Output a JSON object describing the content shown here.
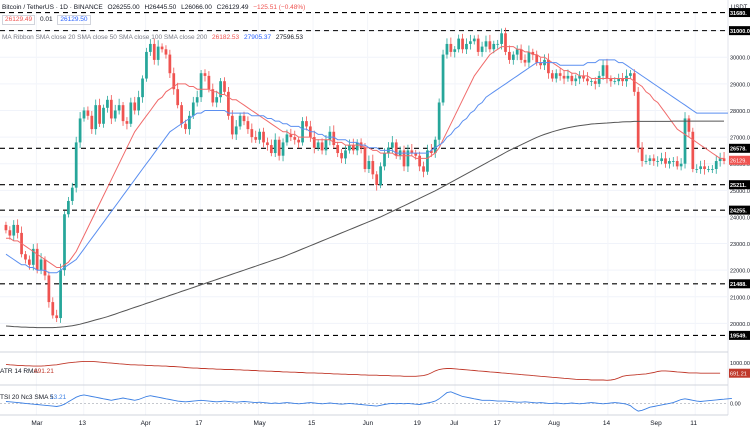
{
  "header": {
    "pair": "Bitcoin / TetherUS · 1D · BINANCE",
    "o": "O26255.00",
    "h": "H26445.50",
    "l": "L26066.00",
    "c": "C26129.49",
    "chg": "−125.51 (−0.48%)",
    "sell": "26129.49",
    "spread": "0.01",
    "buy": "26129.50",
    "ma_ribbon_label": "MA Ribbon SMA close 20 SMA close 50 SMA close 100 SMA close 200",
    "ma20": "26182.53",
    "ma50": "27905.37",
    "ma200": "27596.53",
    "currency": "USDT"
  },
  "colors": {
    "up": "#26a69a",
    "down": "#ef5350",
    "ma20": "#f06b6b",
    "ma50": "#5b8ff0",
    "ma200": "#555555",
    "atr": "#c0392b",
    "tsi": "#3b7fe3"
  },
  "chart_data": {
    "type": "candlestick",
    "title": "Bitcoin / TetherUS · 1D · BINANCE",
    "xlabel": "",
    "ylabel": "",
    "ylim": [
      19000,
      31700
    ],
    "x_ticks": [
      "Mar",
      "13",
      "Apr",
      "17",
      "May",
      "15",
      "Jun",
      "19",
      "Jul",
      "17",
      "Aug",
      "14",
      "Sep",
      "11"
    ],
    "y_ticks": [
      "31000.00",
      "30000.00",
      "29000.00",
      "28000.00",
      "27000.00",
      "26000.00",
      "25000.00",
      "24000.00",
      "23000.00",
      "22000.00",
      "21000.00",
      "20000.00"
    ],
    "price_levels": [
      {
        "label": "31680.",
        "value": 31680
      },
      {
        "label": "31000.00",
        "value": 31000
      },
      {
        "label": "26578.",
        "value": 26578
      },
      {
        "label": "25211.",
        "value": 25211
      },
      {
        "label": "24255.",
        "value": 24255
      },
      {
        "label": "21488.",
        "value": 21488
      },
      {
        "label": "19549.",
        "value": 19549
      }
    ],
    "last_price_label": "26129.",
    "last_price_value": 26129,
    "close_series": [
      23500,
      23300,
      23700,
      23400,
      22600,
      22400,
      22200,
      22800,
      22000,
      22400,
      21800,
      20800,
      20300,
      20200,
      22000,
      24100,
      24600,
      25100,
      26800,
      27700,
      28000,
      27800,
      27300,
      28200,
      27500,
      28100,
      28400,
      27700,
      28000,
      28200,
      27600,
      27500,
      28300,
      28000,
      28500,
      29200,
      30200,
      30500,
      29900,
      30400,
      30300,
      30100,
      29400,
      28800,
      28200,
      27500,
      27300,
      27800,
      28300,
      28500,
      29400,
      29300,
      28800,
      28300,
      28500,
      29100,
      28700,
      27800,
      27100,
      27400,
      27800,
      27600,
      27300,
      27000,
      26900,
      27200,
      26800,
      26700,
      26400,
      26900,
      26300,
      26800,
      27100,
      27000,
      26900,
      26800,
      27600,
      27400,
      27000,
      26600,
      26800,
      26500,
      26900,
      27200,
      26700,
      26400,
      26200,
      26500,
      26700,
      26500,
      26800,
      26600,
      25800,
      26100,
      25600,
      25200,
      25900,
      26400,
      26600,
      26800,
      26300,
      26500,
      25900,
      26500,
      26400,
      26300,
      25900,
      25700,
      26500,
      26400,
      26900,
      28300,
      30100,
      30500,
      30200,
      30300,
      30700,
      30300,
      30500,
      30600,
      30700,
      30200,
      30400,
      30600,
      30300,
      30500,
      30500,
      30900,
      30200,
      29900,
      30100,
      30300,
      29900,
      29800,
      30200,
      30100,
      29800,
      29700,
      29900,
      29400,
      29200,
      29400,
      29300,
      29200,
      29300,
      29100,
      29200,
      29300,
      29200,
      29100,
      29100,
      29000,
      29300,
      29700,
      29200,
      29100,
      29100,
      29200,
      29100,
      29300,
      29400,
      28700,
      26600,
      26100,
      26100,
      26200,
      26100,
      26100,
      26200,
      26000,
      26100,
      26100,
      25900,
      26000,
      27700,
      27200,
      25800,
      25800,
      25900,
      25800,
      25800,
      25800,
      26100,
      26200,
      26100
    ],
    "series": [
      {
        "name": "SMA close 20",
        "value_label": "26182.53",
        "values": [
          23200,
          23200,
          23100,
          23100,
          23000,
          22900,
          22800,
          22700,
          22600,
          22500,
          22400,
          22300,
          22200,
          22100,
          22100,
          22200,
          22300,
          22500,
          22700,
          23000,
          23300,
          23600,
          23900,
          24200,
          24500,
          24800,
          25100,
          25400,
          25700,
          26000,
          26300,
          26600,
          26900,
          27200,
          27400,
          27600,
          27800,
          28000,
          28200,
          28400,
          28500,
          28700,
          28800,
          28900,
          29000,
          29000,
          29000,
          28900,
          28900,
          28800,
          28800,
          28800,
          28800,
          28700,
          28700,
          28600,
          28600,
          28500,
          28400,
          28400,
          28300,
          28200,
          28100,
          28000,
          27900,
          27800,
          27700,
          27600,
          27500,
          27400,
          27300,
          27200,
          27200,
          27100,
          27100,
          27000,
          27000,
          27000,
          27000,
          26900,
          26900,
          26900,
          26900,
          26900,
          26800,
          26800,
          26800,
          26700,
          26700,
          26700,
          26700,
          26700,
          26600,
          26600,
          26500,
          26500,
          26400,
          26400,
          26400,
          26400,
          26300,
          26300,
          26300,
          26300,
          26300,
          26200,
          26200,
          26200,
          26200,
          26300,
          26400,
          26600,
          26900,
          27200,
          27500,
          27800,
          28100,
          28400,
          28700,
          29000,
          29300,
          29500,
          29700,
          29900,
          30100,
          30200,
          30300,
          30400,
          30400,
          30400,
          30400,
          30300,
          30300,
          30200,
          30200,
          30100,
          30100,
          30000,
          30000,
          29900,
          29800,
          29700,
          29600,
          29500,
          29500,
          29400,
          29400,
          29300,
          29300,
          29300,
          29200,
          29200,
          29200,
          29200,
          29200,
          29200,
          29200,
          29200,
          29200,
          29200,
          29200,
          29100,
          29000,
          28900,
          28700,
          28600,
          28400,
          28300,
          28100,
          27900,
          27700,
          27500,
          27300,
          27200,
          27100,
          27000,
          26900,
          26800,
          26700,
          26600,
          26500,
          26400,
          26300,
          26200,
          26200
        ]
      },
      {
        "name": "SMA close 50",
        "value_label": "27905.37",
        "values": [
          22600,
          22500,
          22400,
          22300,
          22200,
          22200,
          22100,
          22100,
          22000,
          22000,
          22000,
          21900,
          21900,
          21900,
          22000,
          22100,
          22200,
          22300,
          22400,
          22600,
          22800,
          23000,
          23200,
          23400,
          23600,
          23800,
          24000,
          24200,
          24400,
          24600,
          24800,
          25000,
          25200,
          25400,
          25600,
          25800,
          26000,
          26200,
          26400,
          26600,
          26800,
          27000,
          27200,
          27300,
          27400,
          27500,
          27600,
          27700,
          27800,
          27900,
          27900,
          28000,
          28000,
          28000,
          28000,
          28000,
          28000,
          27900,
          27900,
          27900,
          27900,
          27900,
          27900,
          27800,
          27800,
          27800,
          27800,
          27700,
          27700,
          27600,
          27600,
          27500,
          27500,
          27400,
          27400,
          27400,
          27300,
          27300,
          27200,
          27200,
          27100,
          27100,
          27000,
          27000,
          27000,
          26900,
          26900,
          26900,
          26800,
          26800,
          26800,
          26700,
          26700,
          26600,
          26600,
          26600,
          26500,
          26500,
          26500,
          26500,
          26400,
          26400,
          26400,
          26400,
          26400,
          26400,
          26400,
          26400,
          26400,
          26500,
          26600,
          26700,
          26800,
          27000,
          27100,
          27300,
          27400,
          27600,
          27700,
          27900,
          28000,
          28200,
          28300,
          28500,
          28600,
          28700,
          28800,
          28900,
          29000,
          29100,
          29200,
          29300,
          29400,
          29500,
          29600,
          29700,
          29800,
          29800,
          29800,
          29800,
          29800,
          29800,
          29700,
          29700,
          29700,
          29700,
          29700,
          29700,
          29700,
          29800,
          29800,
          29800,
          29900,
          29900,
          29900,
          29900,
          29900,
          29800,
          29800,
          29700,
          29600,
          29500,
          29400,
          29300,
          29200,
          29100,
          29000,
          28900,
          28800,
          28700,
          28600,
          28500,
          28400,
          28300,
          28200,
          28100,
          28000,
          27900,
          27900,
          27900,
          27900,
          27900,
          27900,
          27900,
          27900,
          27900
        ]
      },
      {
        "name": "SMA close 200",
        "value_label": "27596.53",
        "values": [
          19900,
          19890,
          19880,
          19870,
          19860,
          19860,
          19850,
          19850,
          19840,
          19840,
          19840,
          19840,
          19840,
          19850,
          19860,
          19870,
          19890,
          19910,
          19940,
          19970,
          20010,
          20050,
          20090,
          20130,
          20170,
          20210,
          20250,
          20300,
          20350,
          20400,
          20450,
          20500,
          20550,
          20600,
          20650,
          20700,
          20750,
          20800,
          20850,
          20900,
          20950,
          21000,
          21050,
          21100,
          21150,
          21200,
          21250,
          21300,
          21350,
          21400,
          21450,
          21500,
          21550,
          21600,
          21650,
          21700,
          21750,
          21800,
          21850,
          21900,
          21950,
          22000,
          22050,
          22100,
          22150,
          22200,
          22250,
          22300,
          22350,
          22400,
          22450,
          22500,
          22560,
          22620,
          22680,
          22740,
          22800,
          22860,
          22920,
          22980,
          23040,
          23100,
          23160,
          23220,
          23280,
          23340,
          23400,
          23460,
          23520,
          23580,
          23640,
          23700,
          23760,
          23820,
          23880,
          23940,
          24000,
          24070,
          24140,
          24210,
          24280,
          24350,
          24420,
          24490,
          24560,
          24630,
          24700,
          24770,
          24840,
          24910,
          24980,
          25060,
          25140,
          25220,
          25300,
          25380,
          25460,
          25540,
          25620,
          25700,
          25780,
          25860,
          25940,
          26020,
          26100,
          26180,
          26260,
          26340,
          26420,
          26500,
          26570,
          26640,
          26710,
          26780,
          26850,
          26920,
          26990,
          27050,
          27100,
          27150,
          27200,
          27240,
          27280,
          27320,
          27350,
          27380,
          27410,
          27430,
          27450,
          27470,
          27490,
          27500,
          27510,
          27520,
          27530,
          27540,
          27550,
          27560,
          27570,
          27580,
          27580,
          27590,
          27590,
          27590,
          27590,
          27590,
          27590,
          27590,
          27590,
          27590,
          27590,
          27600,
          27600,
          27600,
          27600,
          27600,
          27600,
          27600,
          27600,
          27600,
          27600,
          27600,
          27600,
          27600,
          27600
        ]
      }
    ],
    "atr_panel": {
      "name": "ATR 14 RMA",
      "value_label": "691.21",
      "y_ticks": [
        "1000.00"
      ],
      "ylim": [
        400,
        1200
      ],
      "values": [
        950,
        940,
        930,
        920,
        920,
        910,
        910,
        900,
        900,
        900,
        910,
        920,
        930,
        940,
        960,
        980,
        1000,
        1010,
        1020,
        1030,
        1040,
        1040,
        1040,
        1030,
        1020,
        1010,
        1000,
        990,
        980,
        970,
        960,
        950,
        940,
        940,
        930,
        930,
        920,
        920,
        910,
        910,
        900,
        900,
        890,
        890,
        880,
        870,
        860,
        850,
        840,
        840,
        830,
        830,
        820,
        820,
        810,
        810,
        800,
        800,
        800,
        790,
        790,
        780,
        780,
        770,
        770,
        760,
        760,
        750,
        750,
        740,
        740,
        730,
        730,
        720,
        720,
        710,
        710,
        700,
        700,
        700,
        690,
        690,
        680,
        680,
        670,
        670,
        660,
        660,
        650,
        650,
        650,
        640,
        640,
        630,
        630,
        630,
        620,
        620,
        620,
        610,
        610,
        610,
        600,
        600,
        600,
        600,
        610,
        620,
        650,
        700,
        760,
        800,
        820,
        830,
        830,
        820,
        810,
        800,
        790,
        780,
        770,
        760,
        750,
        740,
        730,
        720,
        710,
        700,
        690,
        680,
        670,
        660,
        650,
        640,
        630,
        620,
        610,
        600,
        590,
        580,
        570,
        560,
        550,
        540,
        530,
        520,
        510,
        500,
        500,
        500,
        490,
        490,
        490,
        490,
        480,
        490,
        510,
        550,
        600,
        620,
        630,
        640,
        650,
        660,
        670,
        690,
        710,
        740,
        760,
        760,
        750,
        740,
        730,
        720,
        710,
        700,
        700,
        700,
        690,
        690,
        690,
        690,
        690,
        690
      ]
    },
    "tsi_panel": {
      "name": "TSI 20 Nc3 SMA 5",
      "value_label": "13.21",
      "y_ticks": [
        "0.00"
      ],
      "ylim": [
        -25,
        40
      ],
      "values": [
        5,
        4,
        3,
        2,
        1,
        0,
        -1,
        -2,
        -3,
        -4,
        -5,
        -6,
        -7,
        -8,
        -6,
        -2,
        4,
        10,
        16,
        20,
        22,
        20,
        18,
        16,
        14,
        12,
        10,
        8,
        10,
        12,
        14,
        12,
        10,
        8,
        10,
        14,
        18,
        20,
        18,
        16,
        14,
        12,
        10,
        8,
        6,
        5,
        4,
        5,
        6,
        7,
        8,
        7,
        6,
        5,
        4,
        5,
        6,
        5,
        4,
        3,
        4,
        5,
        4,
        3,
        2,
        3,
        2,
        1,
        0,
        1,
        0,
        1,
        2,
        1,
        0,
        -1,
        0,
        1,
        2,
        1,
        0,
        -1,
        0,
        1,
        0,
        -1,
        -2,
        -1,
        0,
        -1,
        -2,
        -3,
        -4,
        -5,
        -6,
        -7,
        -5,
        -3,
        -1,
        0,
        -1,
        0,
        -1,
        0,
        -1,
        -2,
        -3,
        -1,
        1,
        3,
        6,
        12,
        20,
        28,
        30,
        26,
        22,
        18,
        16,
        14,
        12,
        10,
        8,
        8,
        8,
        7,
        6,
        6,
        6,
        5,
        4,
        3,
        3,
        4,
        3,
        2,
        1,
        2,
        1,
        0,
        0,
        1,
        0,
        -1,
        0,
        1,
        0,
        -1,
        0,
        1,
        2,
        1,
        0,
        -1,
        0,
        1,
        2,
        1,
        0,
        -2,
        -6,
        -14,
        -20,
        -18,
        -14,
        -10,
        -8,
        -6,
        -4,
        -2,
        0,
        2,
        6,
        10,
        12,
        10,
        8,
        6,
        5,
        6,
        7,
        8,
        9,
        10,
        11,
        12,
        13
      ]
    }
  }
}
